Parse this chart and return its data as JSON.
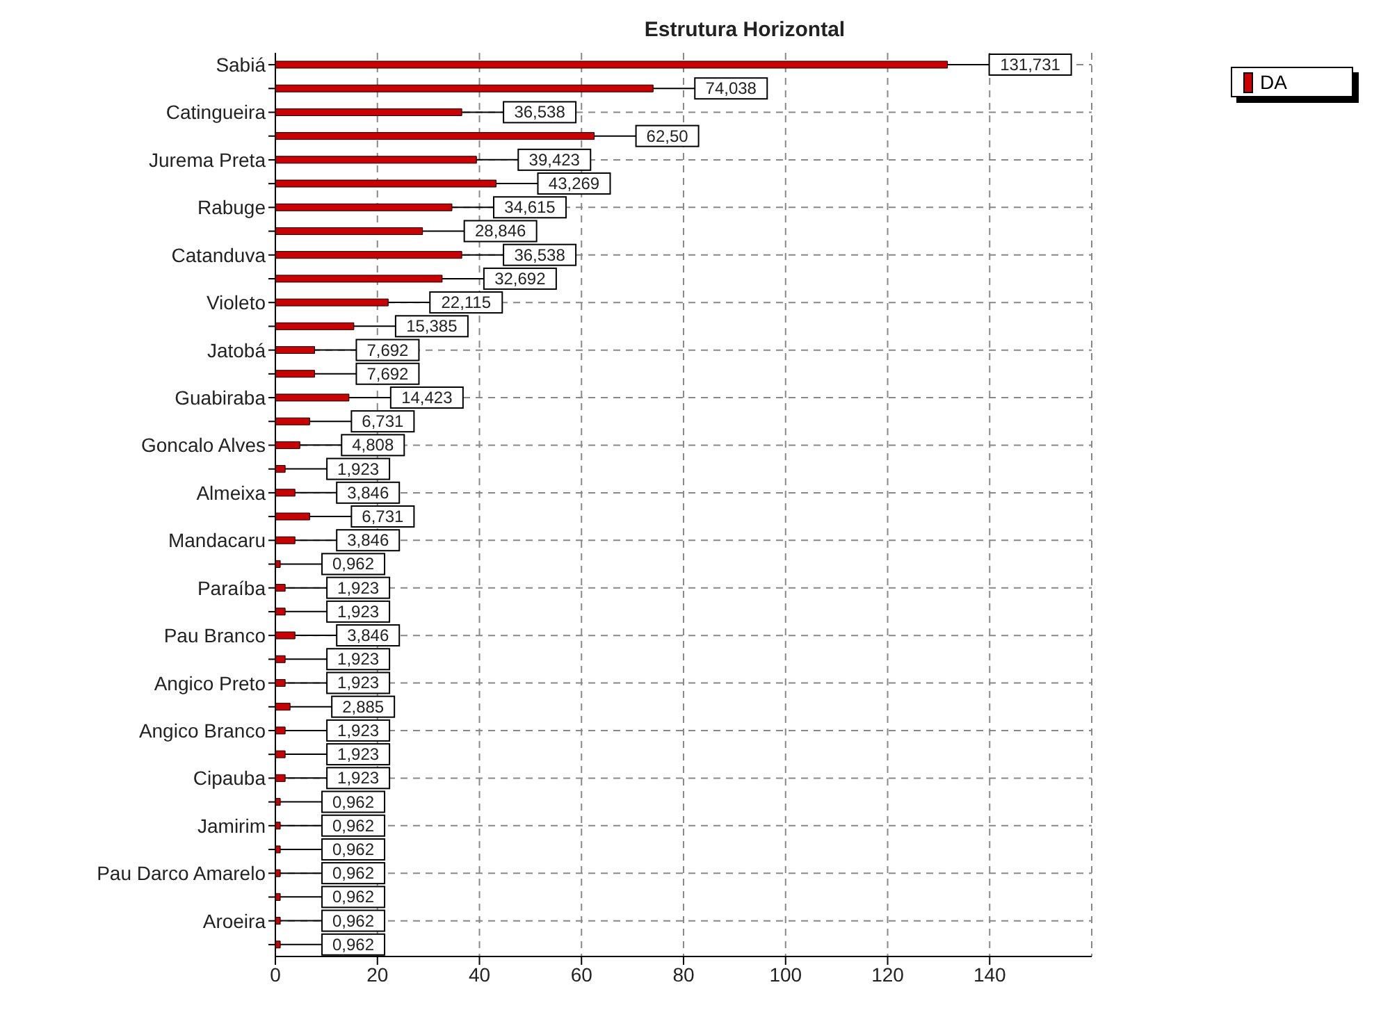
{
  "chart_data": {
    "type": "bar",
    "orientation": "horizontal",
    "title": "Estrutura Horizontal",
    "categories": [
      "Sabiá",
      null,
      "Catingueira",
      null,
      "Jurema Preta",
      null,
      "Rabuge",
      null,
      "Catanduva",
      null,
      "Violeto",
      null,
      "Jatobá",
      null,
      "Guabiraba",
      null,
      "Goncalo Alves",
      null,
      "Almeixa",
      null,
      "Mandacaru",
      null,
      "Paraíba",
      null,
      "Pau Branco",
      null,
      "Angico Preto",
      null,
      "Angico Branco",
      null,
      "Cipauba",
      null,
      "Jamirim",
      null,
      "Pau Darco Amarelo",
      null,
      "Aroeira",
      null
    ],
    "series": [
      {
        "name": "DA",
        "color": "#cc0000",
        "values": [
          131.731,
          74.038,
          36.538,
          62.5,
          39.423,
          43.269,
          34.615,
          28.846,
          36.538,
          32.692,
          22.115,
          15.385,
          7.692,
          7.692,
          14.423,
          6.731,
          4.808,
          1.923,
          3.846,
          6.731,
          3.846,
          0.962,
          1.923,
          1.923,
          3.846,
          1.923,
          1.923,
          2.885,
          1.923,
          1.923,
          1.923,
          0.962,
          0.962,
          0.962,
          0.962,
          0.962,
          0.962,
          0.962
        ],
        "value_labels": [
          "131,731",
          "74,038",
          "36,538",
          "62,50",
          "39,423",
          "43,269",
          "34,615",
          "28,846",
          "36,538",
          "32,692",
          "22,115",
          "15,385",
          "7,692",
          "7,692",
          "14,423",
          "6,731",
          "4,808",
          "1,923",
          "3,846",
          "6,731",
          "3,846",
          "0,962",
          "1,923",
          "1,923",
          "3,846",
          "1,923",
          "1,923",
          "2,885",
          "1,923",
          "1,923",
          "1,923",
          "0,962",
          "0,962",
          "0,962",
          "0,962",
          "0,962",
          "0,962",
          "0,962"
        ]
      }
    ],
    "xlim": [
      0,
      160
    ],
    "xticks": [
      0,
      20,
      40,
      60,
      80,
      100,
      120,
      140
    ],
    "grid": true,
    "legend": "top right"
  }
}
